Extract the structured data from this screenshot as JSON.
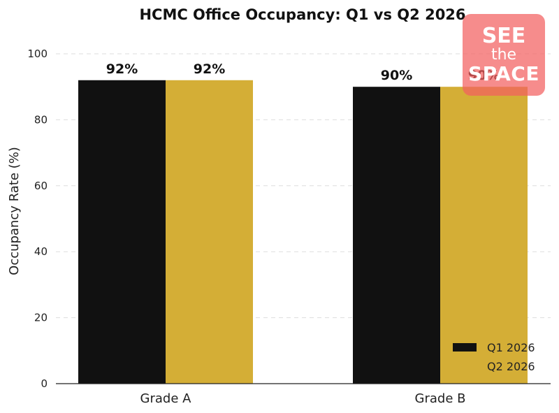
{
  "chart_data": {
    "type": "bar",
    "title": "HCMC Office Occupancy: Q1 vs Q2 2026",
    "xlabel": "",
    "ylabel": "Occupancy Rate (%)",
    "categories": [
      "Grade A",
      "Grade B"
    ],
    "series": [
      {
        "name": "Q1 2026",
        "values": [
          92,
          90
        ],
        "color": "#111111",
        "labels": [
          "92%",
          "90%"
        ]
      },
      {
        "name": "Q2 2026",
        "values": [
          92,
          90
        ],
        "color": "#d4ae36",
        "labels": [
          "92%",
          "90%"
        ]
      }
    ],
    "ylim": [
      0,
      100
    ],
    "yticks": [
      "0",
      "20",
      "40",
      "60",
      "80",
      "100"
    ],
    "grid": true,
    "legend": "bottom-right"
  },
  "watermark": {
    "line1": "SEE",
    "line2": "the",
    "line3": "SPACE"
  }
}
